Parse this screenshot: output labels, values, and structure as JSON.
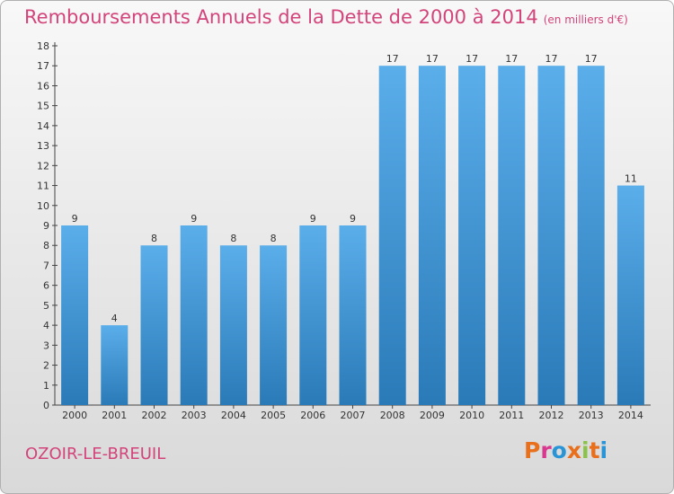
{
  "title": "Remboursements Annuels de la Dette de 2000 à 2014",
  "unit": "(en milliers d'€)",
  "city": "OZOIR-LE-BREUIL",
  "brand": "Proxiti",
  "colors": {
    "title": "#d2447a",
    "bar_top": "#5aaeea",
    "bar_bottom": "#2a7ab8",
    "brand_letters": [
      "#e8701d",
      "#d8398f",
      "#2a95d6",
      "#e8701d",
      "#8bc34a",
      "#e8701d",
      "#2a95d6"
    ]
  },
  "chart_data": {
    "type": "bar",
    "title": "Remboursements Annuels de la Dette de 2000 à 2014",
    "unit_note": "(en milliers d'€)",
    "categories": [
      "2000",
      "2001",
      "2002",
      "2003",
      "2004",
      "2005",
      "2006",
      "2007",
      "2008",
      "2009",
      "2010",
      "2011",
      "2012",
      "2013",
      "2014"
    ],
    "values": [
      9,
      4,
      8,
      9,
      8,
      8,
      9,
      9,
      17,
      17,
      17,
      17,
      17,
      17,
      11
    ],
    "ylim": [
      0,
      18
    ],
    "yticks": [
      0,
      1,
      2,
      3,
      4,
      5,
      6,
      7,
      8,
      9,
      10,
      11,
      12,
      13,
      14,
      15,
      16,
      17,
      18
    ],
    "grid": false,
    "legend": "none"
  }
}
